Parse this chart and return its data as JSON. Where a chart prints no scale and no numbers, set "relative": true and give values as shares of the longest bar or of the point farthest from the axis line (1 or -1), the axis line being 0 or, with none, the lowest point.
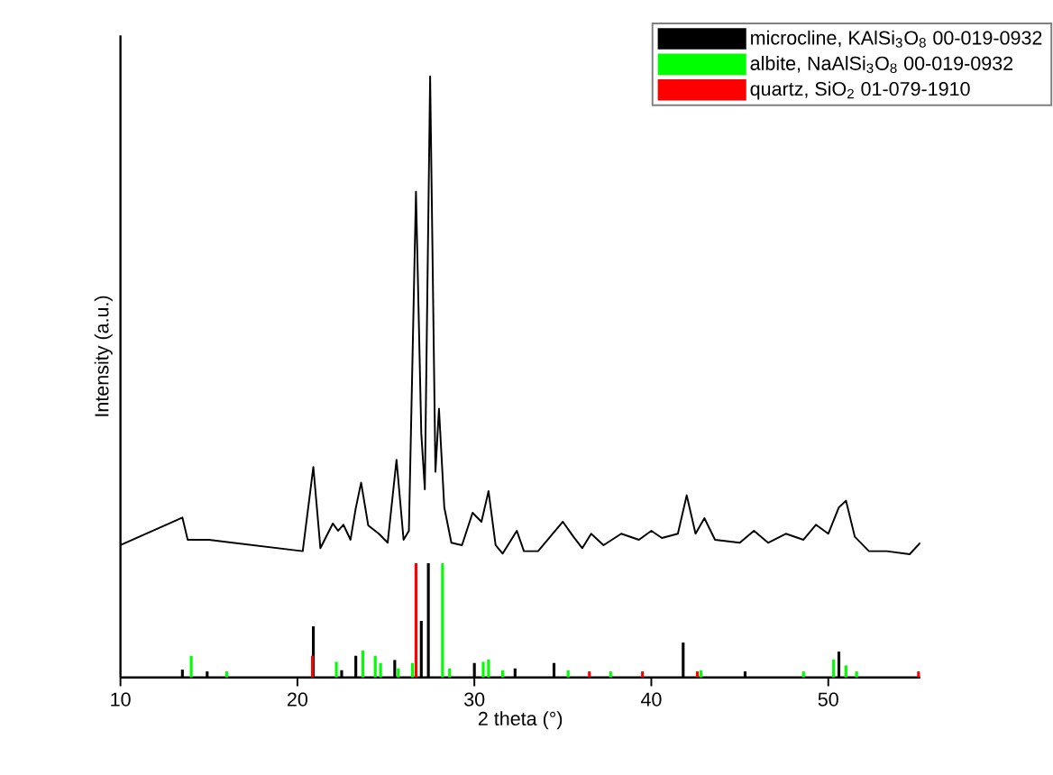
{
  "chart_data": {
    "type": "line",
    "xlabel": "2 theta (°)",
    "ylabel": "Intensity (a.u.)",
    "xlim": [
      10,
      55.2
    ],
    "xticks": [
      10,
      20,
      30,
      40,
      50
    ],
    "relative": true,
    "legend": "top right",
    "series": [
      {
        "color": "#000000",
        "x": [
          10,
          13.5,
          13.8,
          15,
          20.3,
          20.9,
          21.3,
          22.0,
          22.3,
          22.6,
          23.0,
          23.3,
          23.6,
          24.0,
          24.6,
          25.1,
          25.6,
          26.0,
          26.3,
          26.7,
          27.0,
          27.2,
          27.5,
          27.8,
          28.0,
          28.3,
          28.7,
          29.3,
          29.9,
          30.4,
          30.8,
          31.2,
          31.6,
          32.4,
          32.8,
          33.6,
          35.0,
          35.6,
          36.1,
          36.6,
          37.3,
          38.3,
          39.3,
          40.0,
          40.6,
          41.5,
          42.0,
          42.5,
          43.0,
          43.6,
          45.0,
          45.8,
          46.6,
          47.6,
          48.6,
          49.3,
          50.0,
          50.6,
          51.0,
          51.5,
          52.3,
          53.3,
          54.6,
          55.2
        ],
        "values": [
          0.22,
          0.266,
          0.229,
          0.229,
          0.21,
          0.35,
          0.215,
          0.256,
          0.244,
          0.254,
          0.229,
          0.282,
          0.324,
          0.253,
          0.239,
          0.224,
          0.362,
          0.229,
          0.244,
          0.808,
          0.406,
          0.313,
          1.0,
          0.342,
          0.447,
          0.283,
          0.224,
          0.22,
          0.274,
          0.259,
          0.31,
          0.22,
          0.206,
          0.244,
          0.21,
          0.21,
          0.259,
          0.234,
          0.215,
          0.239,
          0.22,
          0.239,
          0.229,
          0.244,
          0.232,
          0.239,
          0.303,
          0.239,
          0.265,
          0.229,
          0.224,
          0.244,
          0.224,
          0.239,
          0.229,
          0.254,
          0.239,
          0.283,
          0.294,
          0.234,
          0.21,
          0.21,
          0.205,
          0.224
        ]
      },
      {
        "type": "bar",
        "name": "microcline, KAlSi$_{3}$O$_{8}$ 00-019-0932",
        "color": "#000000",
        "x": [
          13.5,
          14.9,
          20.9,
          22.5,
          23.3,
          25.5,
          27.0,
          27.4,
          30.0,
          32.3,
          34.5,
          41.8,
          45.3,
          50.6
        ],
        "values": [
          0.013,
          0.01,
          0.085,
          0.012,
          0.036,
          0.029,
          0.094,
          0.19,
          0.024,
          0.015,
          0.024,
          0.058,
          0.01,
          0.043
        ]
      },
      {
        "type": "bar",
        "name": "albite, NaAlSi$_{3}$O$_{8}$ 00-019-0932",
        "color": "#00ff00",
        "x": [
          14.0,
          16.0,
          22.2,
          23.7,
          24.4,
          24.7,
          25.7,
          26.5,
          28.2,
          28.6,
          30.5,
          30.8,
          31.6,
          35.3,
          37.7,
          42.8,
          48.6,
          50.3,
          51.0,
          51.6
        ],
        "values": [
          0.036,
          0.01,
          0.026,
          0.045,
          0.036,
          0.024,
          0.015,
          0.024,
          0.19,
          0.015,
          0.026,
          0.03,
          0.012,
          0.012,
          0.01,
          0.012,
          0.01,
          0.03,
          0.02,
          0.01
        ]
      },
      {
        "type": "bar",
        "name": "quartz, SiO$_{2}$ 01-079-1910",
        "color": "#ff0000",
        "x": [
          20.85,
          26.7,
          36.5,
          39.5,
          42.6,
          55.1
        ],
        "values": [
          0.036,
          0.19,
          0.01,
          0.01,
          0.01,
          0.01
        ]
      }
    ]
  }
}
